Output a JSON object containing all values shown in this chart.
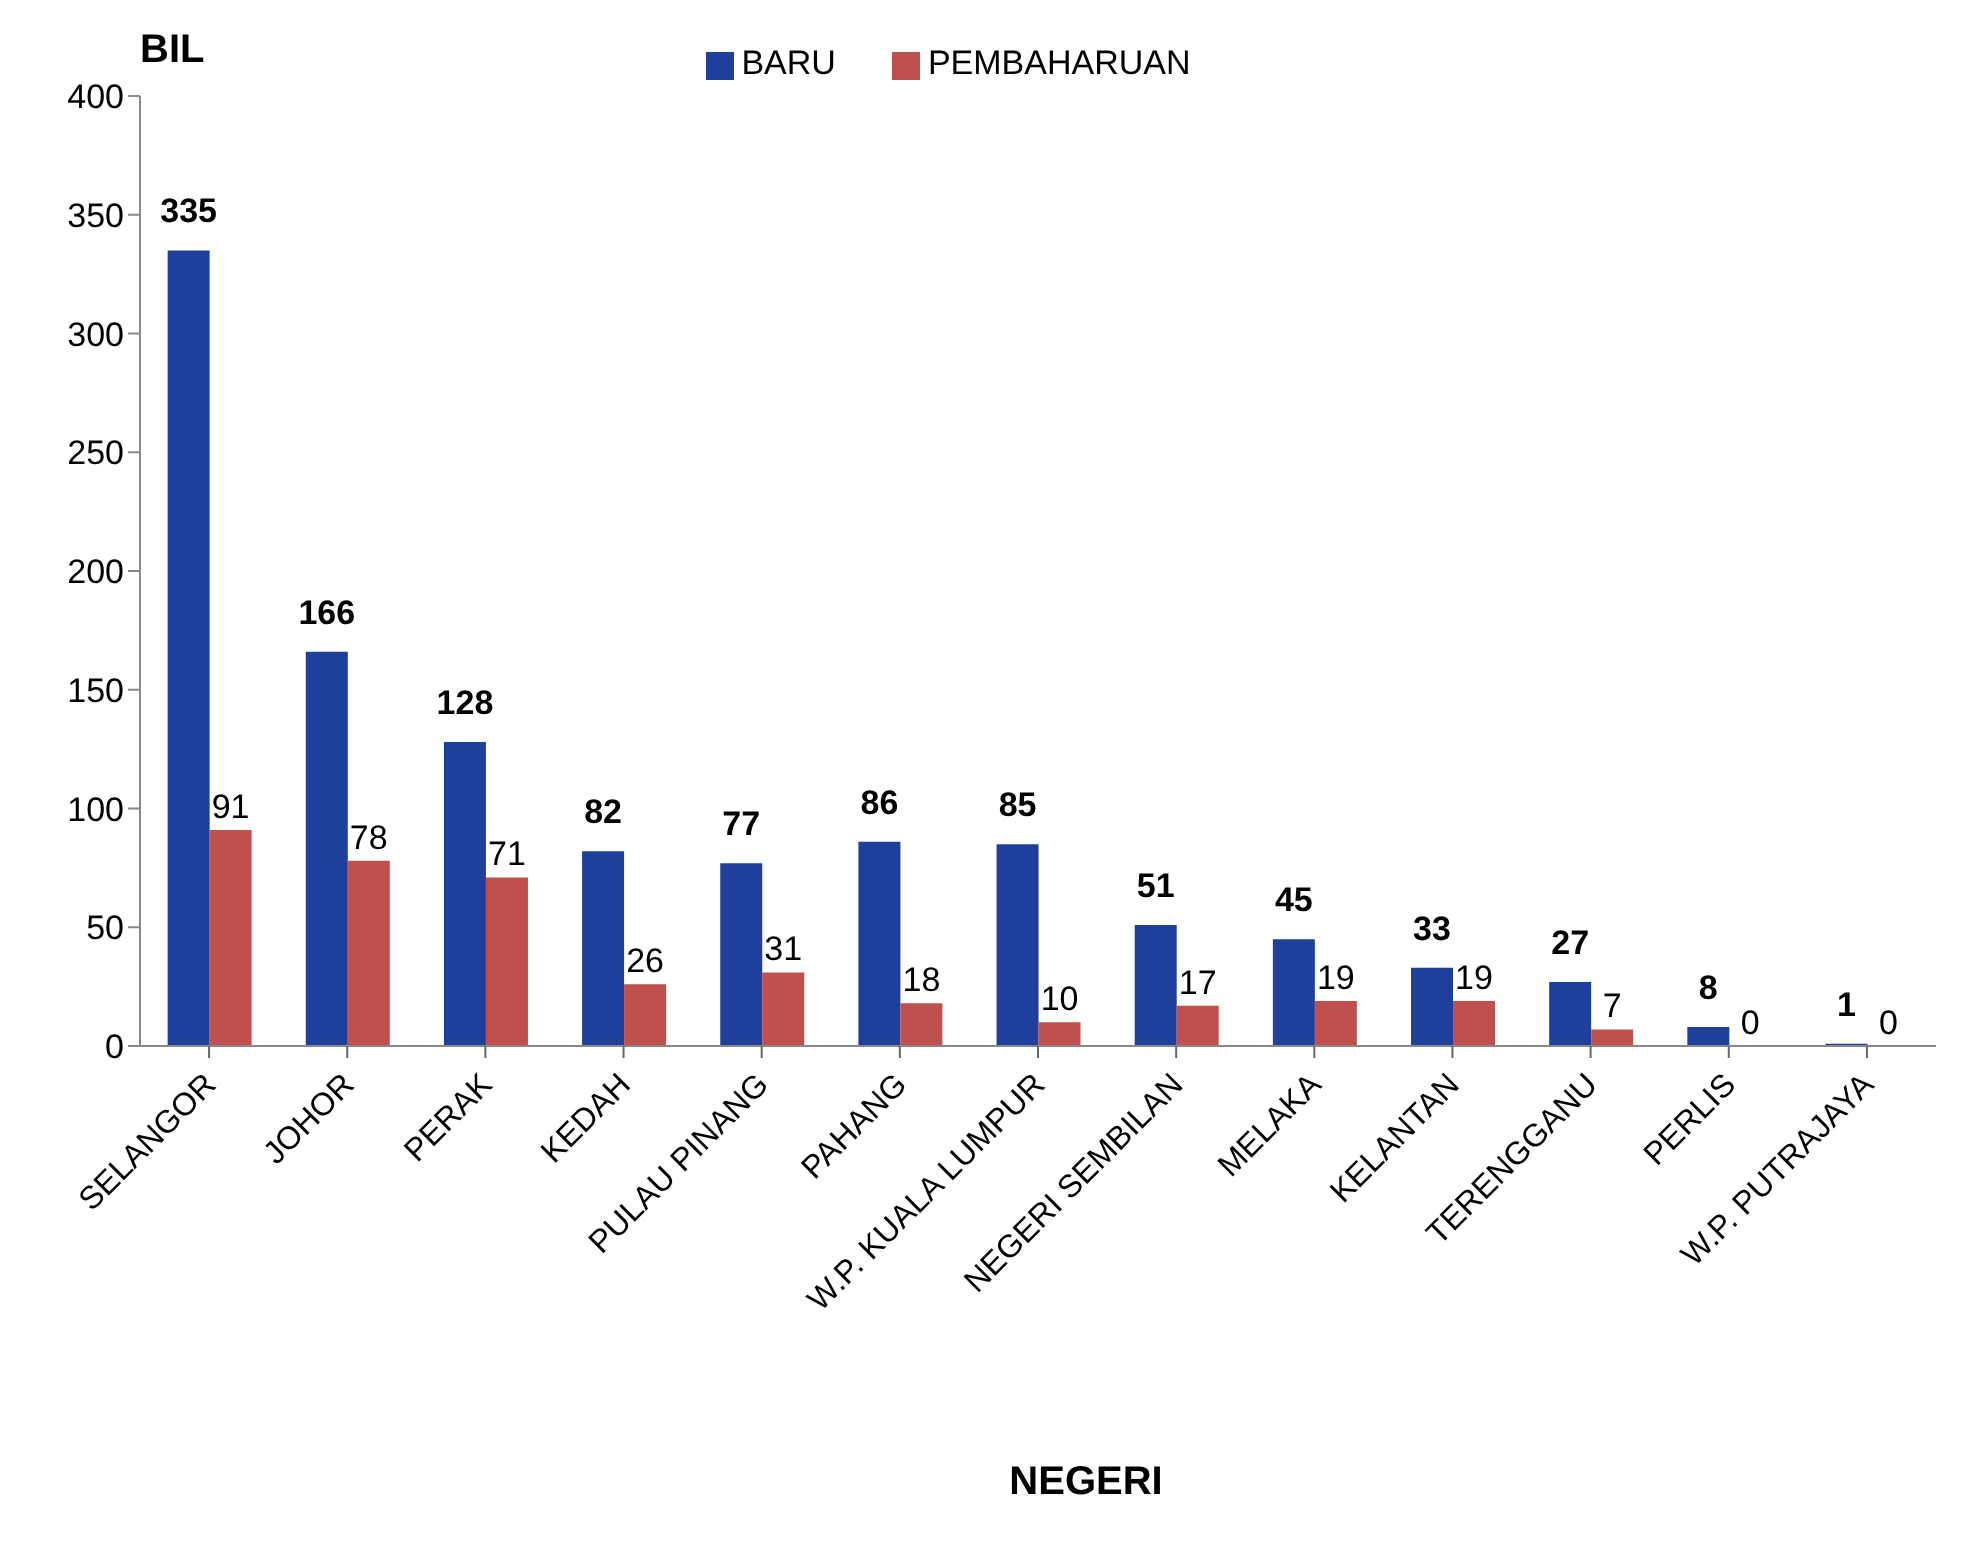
{
  "chart_data": {
    "type": "bar",
    "xlabel": "NEGERI",
    "ylabel": "BIL",
    "categories": [
      "SELANGOR",
      "JOHOR",
      "PERAK",
      "KEDAH",
      "PULAU PINANG",
      "PAHANG",
      "W.P. KUALA LUMPUR",
      "NEGERI SEMBILAN",
      "MELAKA",
      "KELANTAN",
      "TERENGGANU",
      "PERLIS",
      "W.P. PUTRAJAYA"
    ],
    "series": [
      {
        "name": "BARU",
        "color": "#1f3f9c",
        "values": [
          335,
          166,
          128,
          82,
          77,
          86,
          85,
          51,
          45,
          33,
          27,
          8,
          1
        ]
      },
      {
        "name": "PEMBAHARUAN",
        "color": "#c0504d",
        "values": [
          91,
          78,
          71,
          26,
          31,
          18,
          10,
          17,
          19,
          19,
          7,
          0,
          0
        ]
      }
    ],
    "ylim": [
      0,
      400
    ],
    "yticks": [
      0,
      50,
      100,
      150,
      200,
      250,
      300,
      350,
      400
    ],
    "grid": false,
    "legend": "top",
    "data_labels": true
  }
}
